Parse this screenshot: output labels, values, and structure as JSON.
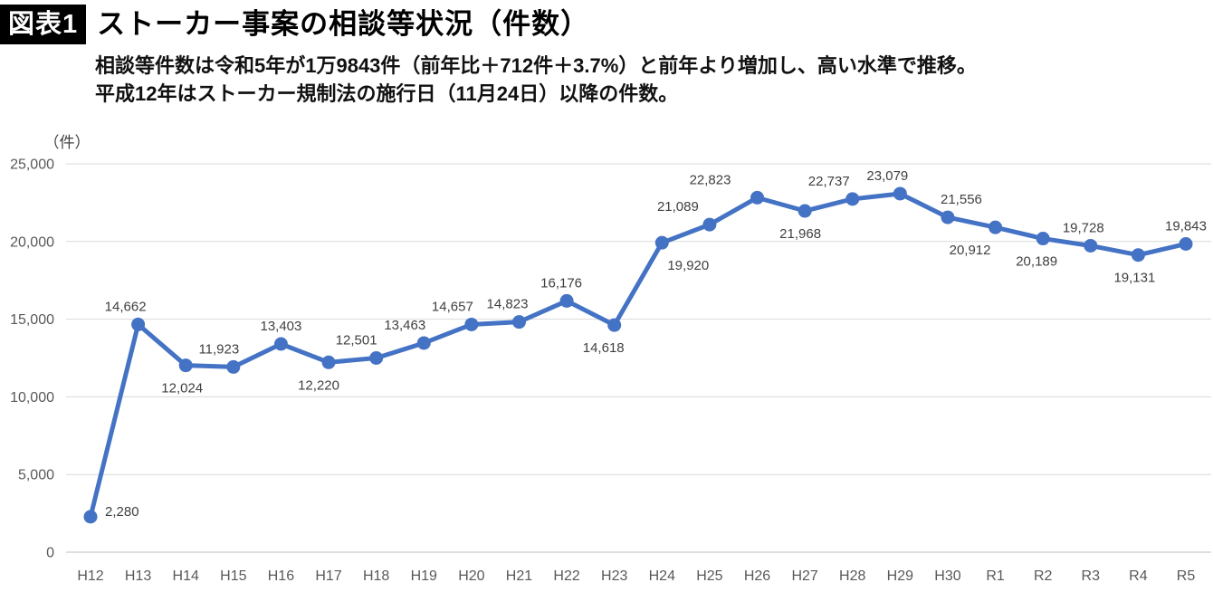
{
  "header": {
    "badge": "図表1",
    "title": "ストーカー事案の相談等状況（件数）"
  },
  "subtitle": {
    "line1": "相談等件数は令和5年が1万9843件（前年比＋712件＋3.7%）と前年より増加し、高い水準で推移。",
    "line2": "平成12年はストーカー規制法の施行日（11月24日）以降の件数。"
  },
  "chart_data": {
    "type": "line",
    "title": "ストーカー事案の相談等状況（件数）",
    "ylabel": "（件）",
    "unit_label": "（件）",
    "categories": [
      "H12",
      "H13",
      "H14",
      "H15",
      "H16",
      "H17",
      "H18",
      "H19",
      "H20",
      "H21",
      "H22",
      "H23",
      "H24",
      "H25",
      "H26",
      "H27",
      "H28",
      "H29",
      "H30",
      "R1",
      "R2",
      "R3",
      "R4",
      "R5"
    ],
    "values": [
      2280,
      14662,
      12024,
      11923,
      13403,
      12220,
      12501,
      13463,
      14657,
      14823,
      16176,
      14618,
      19920,
      21089,
      22823,
      21968,
      22737,
      23079,
      21556,
      20912,
      20189,
      19728,
      19131,
      19843
    ],
    "label_positions": [
      "right",
      "above",
      "below",
      "above",
      "above",
      "below",
      "above",
      "above",
      "above",
      "above",
      "above",
      "below",
      "below",
      "above",
      "above",
      "below",
      "above",
      "above",
      "above",
      "below",
      "below",
      "above",
      "below",
      "above"
    ],
    "label_dx": [
      0,
      -14,
      -4,
      -16,
      0,
      -11,
      -22,
      -21,
      -21,
      -13,
      -6,
      -12,
      29,
      -35,
      -52,
      -5,
      -26,
      -14,
      15,
      -28,
      -7,
      -8,
      -4,
      0
    ],
    "yticks": [
      0,
      5000,
      10000,
      15000,
      20000,
      25000
    ],
    "ylim": [
      0,
      25000
    ],
    "grid": true,
    "legend_position": "none",
    "line_color": "#4472C4",
    "grid_color": "#D9D9D9",
    "axis_color": "#BFBFBF",
    "tick_color": "#595959",
    "data_label_color": "#404040",
    "unit_label_color": "#404040"
  }
}
